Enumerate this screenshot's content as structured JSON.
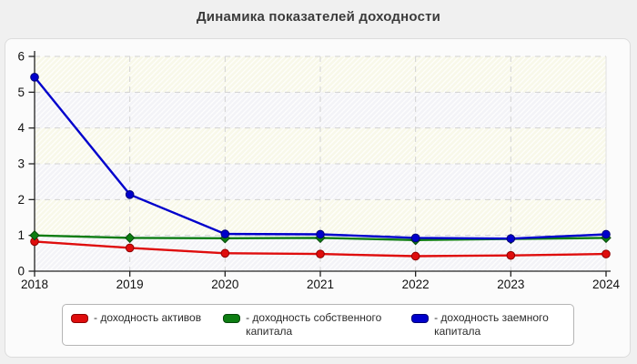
{
  "chart_data": {
    "type": "line",
    "title": "Динамика показателей доходности",
    "x": [
      2018,
      2019,
      2020,
      2021,
      2022,
      2023,
      2024
    ],
    "series": [
      {
        "id": "return-on-assets",
        "name": "доходность активов",
        "color": "#df0d0d",
        "marker_border": "#8f0000",
        "marker": "circle",
        "values": [
          0.83,
          0.65,
          0.5,
          0.48,
          0.42,
          0.44,
          0.48
        ]
      },
      {
        "id": "return-on-equity",
        "name": "доходность собственного капитала",
        "color": "#0d7d12",
        "marker_border": "#05470a",
        "marker": "diamond",
        "values": [
          1.0,
          0.93,
          0.92,
          0.93,
          0.87,
          0.9,
          0.93
        ]
      },
      {
        "id": "return-on-debt",
        "name": "доходность заемного капитала",
        "color": "#0000cc",
        "marker_border": "#000075",
        "marker": "circle",
        "values": [
          5.42,
          2.14,
          1.04,
          1.03,
          0.93,
          0.91,
          1.03
        ]
      }
    ],
    "ylim": [
      0,
      6
    ],
    "yticks": [
      0,
      1,
      2,
      3,
      4,
      5,
      6
    ],
    "grid": true,
    "legend_position": "bottom"
  },
  "legend": {
    "items": [
      {
        "label": "- доходность активов",
        "color": "#df0d0d",
        "border": "#8f0000"
      },
      {
        "label": "- доходность собственного капитала",
        "color": "#0d7d12",
        "border": "#05470a"
      },
      {
        "label": "- доходность заемного капитала",
        "color": "#0000cc",
        "border": "#000075"
      }
    ]
  },
  "colors": {
    "page_bg": "#f0f0f0",
    "panel_bg": "#fbfbfb",
    "band_yellow": "#f8f8e9",
    "band_blue": "#f3f3f7",
    "gridline": "#d2d2d2",
    "axis": "#222222"
  }
}
